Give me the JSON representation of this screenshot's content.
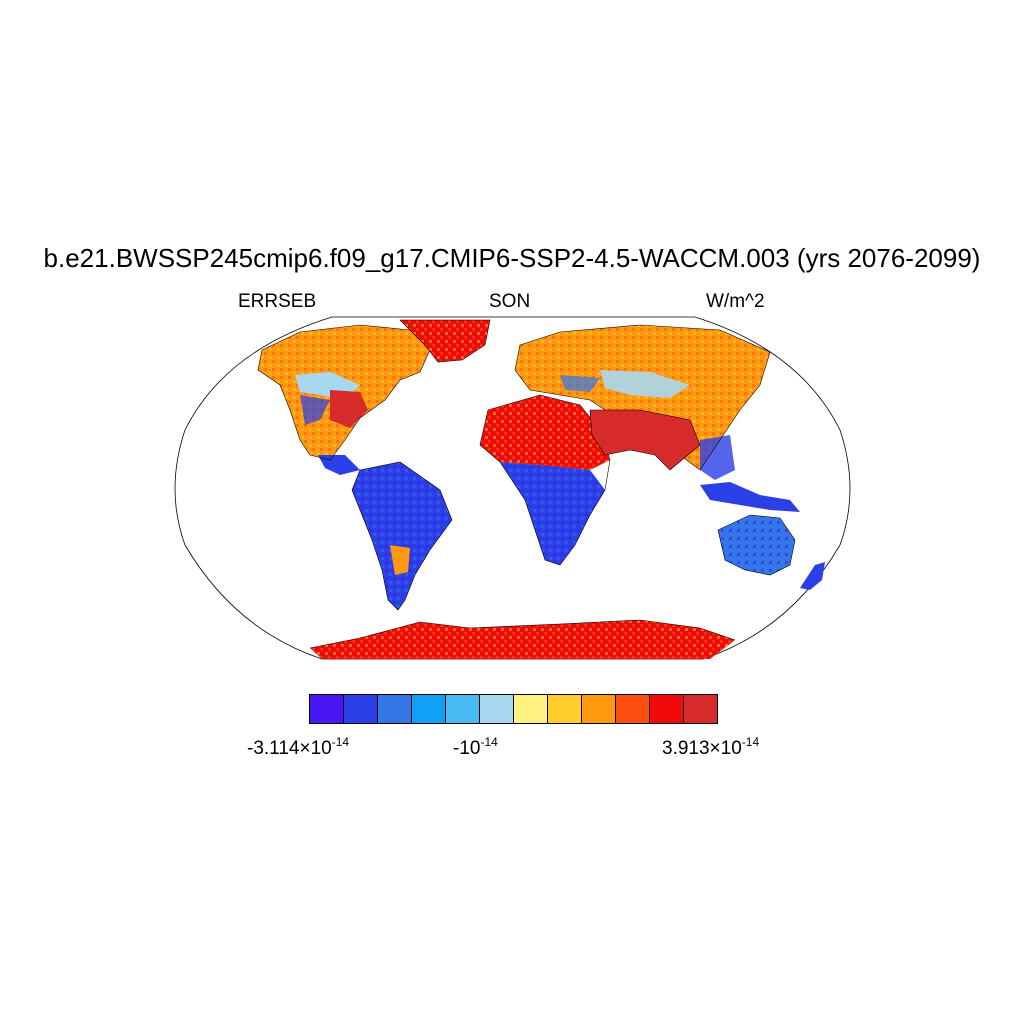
{
  "title": "b.e21.BWSSP245cmip6.f09_g17.CMIP6-SSP2-4.5-WACCM.003 (yrs 2076-2099)",
  "subtitles": {
    "left": "ERRSEB",
    "center": "SON",
    "right": "W/m^2"
  },
  "colorbar": {
    "colors": [
      "#4816f5",
      "#2a3fe6",
      "#3478e8",
      "#10a0f5",
      "#48bcf2",
      "#a8d8f0",
      "#fff282",
      "#ffcd2c",
      "#ff9a10",
      "#ff4f10",
      "#f00a0a",
      "#d72a2a"
    ],
    "labels": {
      "min_mantissa": "-3.114",
      "min_exponent": "-14",
      "mid_base": "-10",
      "mid_exponent": "-14",
      "max_mantissa": "3.913",
      "max_exponent": "-14",
      "times_symbol": "×",
      "base": "10"
    }
  },
  "map": {
    "projection": "Robinson",
    "regions": [
      {
        "name": "north-america",
        "fill": "#ff9a10"
      },
      {
        "name": "greenland",
        "fill": "#f00a0a"
      },
      {
        "name": "south-america",
        "fill": "#2a3fe6"
      },
      {
        "name": "africa-north",
        "fill": "#f00a0a"
      },
      {
        "name": "africa-south",
        "fill": "#2a3fe6"
      },
      {
        "name": "eurasia",
        "fill": "#ff9a10"
      },
      {
        "name": "arabia-india",
        "fill": "#d72a2a"
      },
      {
        "name": "australia",
        "fill": "#3478e8"
      },
      {
        "name": "antarctica",
        "fill": "#f00a0a"
      }
    ]
  }
}
